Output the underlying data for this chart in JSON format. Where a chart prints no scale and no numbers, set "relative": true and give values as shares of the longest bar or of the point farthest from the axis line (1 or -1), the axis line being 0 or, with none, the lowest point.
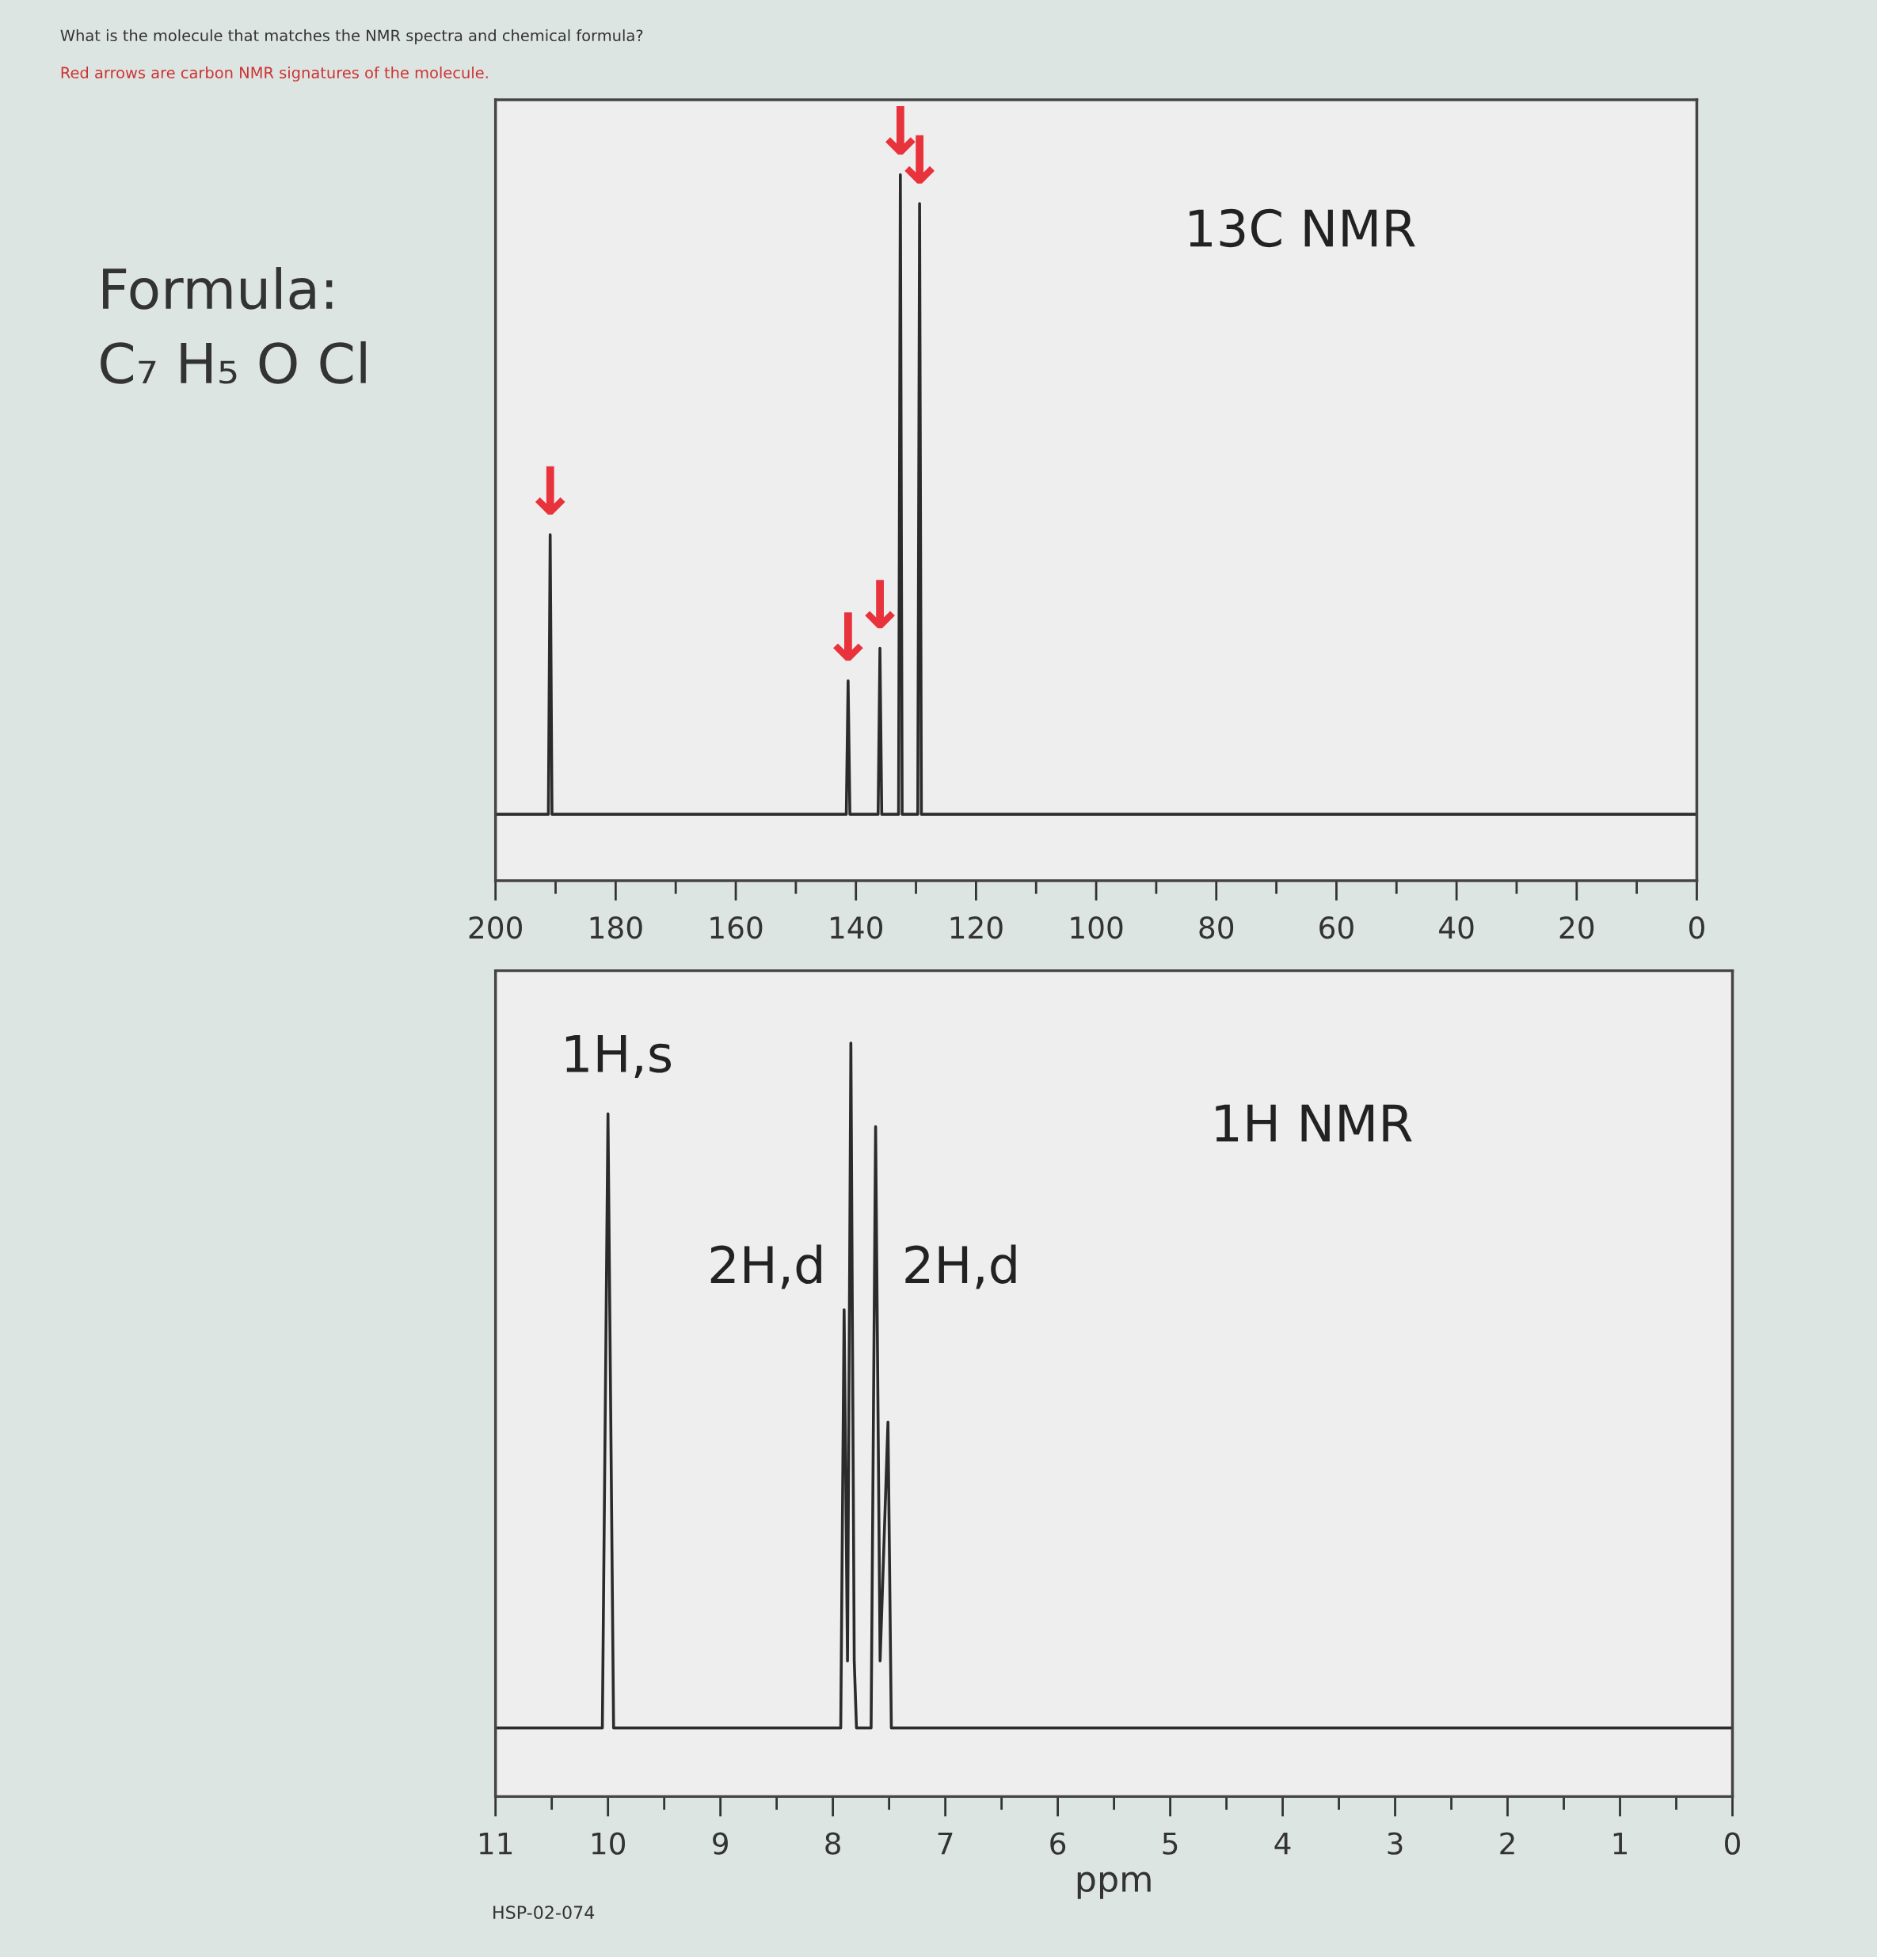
{
  "chart_data": [
    {
      "type": "line",
      "title": "What is the molecule that matches the NMR spectra and chemical formula?",
      "subtitle": "Red arrows are carbon NMR signatures of the molecule.",
      "relative": true,
      "tick_labels": "x",
      "legend": false,
      "grid": false,
      "annotations": [
        "Formula:",
        "C₇ H₅ O Cl",
        "13C NMR",
        {
          "text": "↓",
          "x": 190.9,
          "y": 0.49
        },
        {
          "text": "↓",
          "x": 141.3,
          "y": 0.283
        },
        {
          "text": "↓",
          "x": 136.0,
          "y": 0.329
        },
        {
          "text": "↓",
          "x": 132.6,
          "y": 1.0
        },
        {
          "text": "↓",
          "x": 129.4,
          "y": 0.959
        }
      ],
      "xlim": [
        200,
        0
      ],
      "xticks": [
        200,
        180,
        160,
        140,
        120,
        100,
        80,
        60,
        40,
        20,
        0
      ],
      "series": [
        {
          "color": "#2b2b2b",
          "x": [
            200,
            191.2,
            190.9,
            190.6,
            141.6,
            141.3,
            141.0,
            136.3,
            136.0,
            135.7,
            132.9,
            132.6,
            132.3,
            129.7,
            129.4,
            129.1,
            0
          ],
          "values": [
            0.094,
            0.094,
            0.49,
            0.094,
            0.094,
            0.283,
            0.094,
            0.094,
            0.329,
            0.094,
            0.094,
            1.0,
            0.094,
            0.094,
            0.959,
            0.094,
            0.094
          ]
        }
      ]
    },
    {
      "type": "line",
      "relative": true,
      "tick_labels": "x",
      "legend": false,
      "grid": false,
      "xlabel": "ppm",
      "annotations": [
        "1H,s",
        "2H,d",
        "2H,d",
        "1H NMR",
        "HSP-02-074"
      ],
      "xlim": [
        11,
        0
      ],
      "xticks": [
        11,
        10,
        9,
        8,
        7,
        6,
        5,
        4,
        3,
        2,
        1,
        0
      ],
      "series": [
        {
          "color": "#2b2b2b",
          "x": [
            11,
            10.05,
            10.0,
            9.95,
            7.93,
            7.9,
            7.87,
            7.84,
            7.81,
            7.79,
            7.66,
            7.62,
            7.58,
            7.51,
            7.48,
            0
          ],
          "values": [
            0.091,
            0.091,
            0.906,
            0.091,
            0.091,
            0.646,
            0.18,
            1.0,
            0.18,
            0.091,
            0.091,
            0.889,
            0.18,
            0.497,
            0.091,
            0.091
          ]
        }
      ]
    }
  ]
}
